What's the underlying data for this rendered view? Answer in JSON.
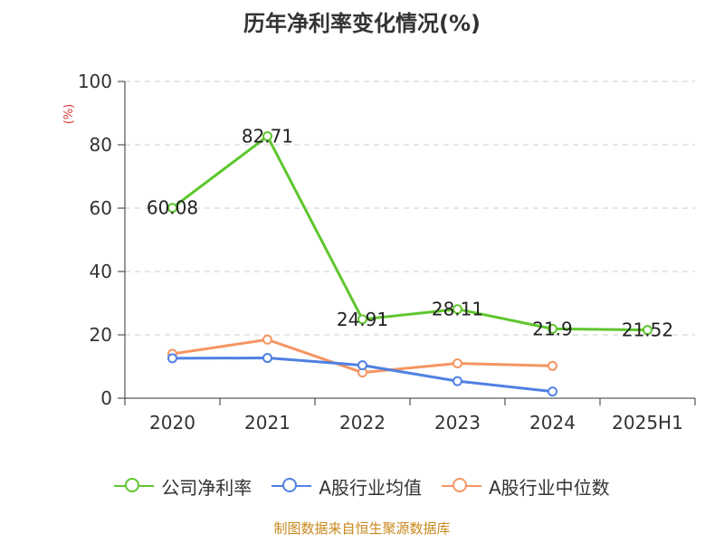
{
  "chart_data": {
    "type": "line",
    "title": "历年净利率变化情况(%)",
    "ylabel": "(%)",
    "xlabel": "",
    "ylim": [
      0,
      100
    ],
    "yticks": [
      0,
      20,
      40,
      60,
      80,
      100
    ],
    "grid": true,
    "legend_position": "bottom",
    "categories": [
      "2020",
      "2021",
      "2022",
      "2023",
      "2024",
      "2025H1"
    ],
    "series": [
      {
        "name": "公司净利率",
        "color": "#5fc62e",
        "values": [
          60.08,
          82.71,
          24.91,
          28.11,
          21.9,
          21.52
        ],
        "labels": [
          "60.08",
          "82.71",
          "24.91",
          "28.11",
          "21.9",
          "21.52"
        ]
      },
      {
        "name": "A股行业均值",
        "color": "#4f81e3",
        "values": [
          12.6,
          12.7,
          10.4,
          5.4,
          2.1,
          null
        ]
      },
      {
        "name": "A股行业中位数",
        "color": "#f59563",
        "values": [
          14.0,
          18.5,
          8.1,
          11.0,
          10.2,
          null
        ]
      }
    ]
  },
  "source": "制图数据来自恒生聚源数据库"
}
